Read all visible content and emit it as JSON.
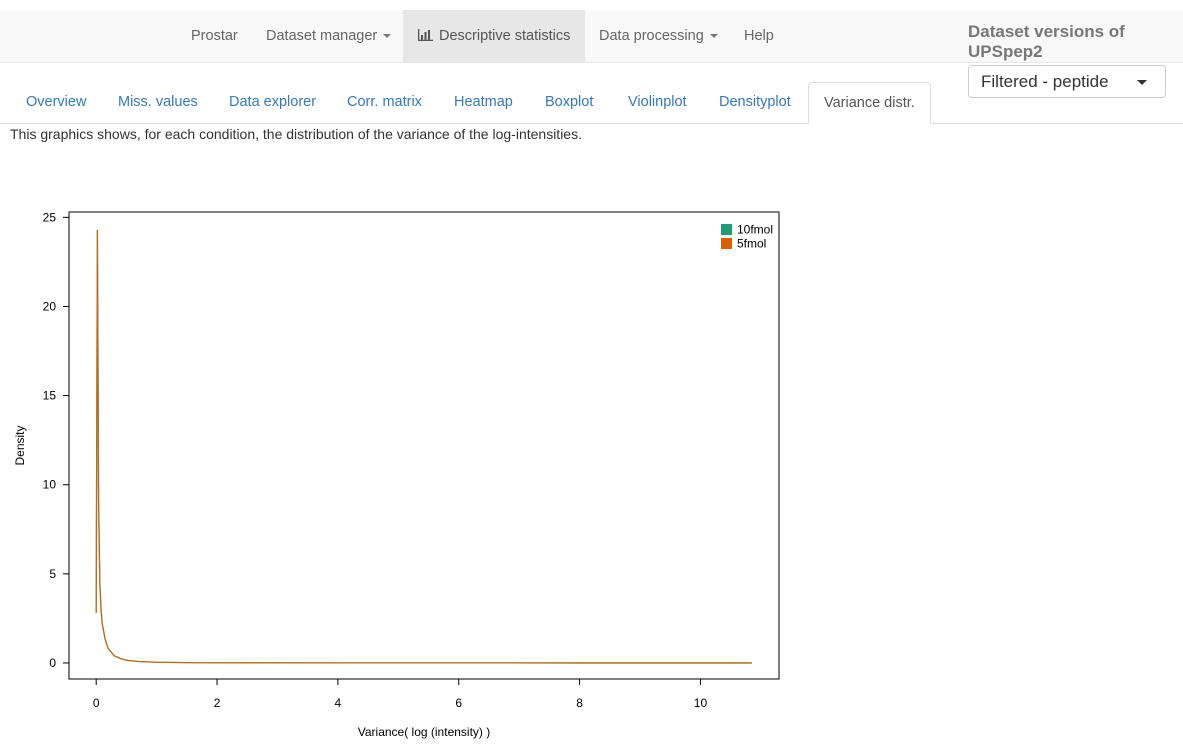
{
  "navbar": {
    "items": [
      {
        "label": "Prostar",
        "dropdown": false
      },
      {
        "label": "Dataset manager",
        "dropdown": true
      },
      {
        "label": "Descriptive statistics",
        "dropdown": false,
        "active": true,
        "icon": "bar-chart-icon"
      },
      {
        "label": "Data processing",
        "dropdown": true
      },
      {
        "label": "Help",
        "dropdown": false
      }
    ]
  },
  "dataset": {
    "title": "Dataset versions of UPSpep2",
    "selected_version": "Filtered - peptide"
  },
  "tabs": [
    {
      "label": "Overview"
    },
    {
      "label": "Miss. values"
    },
    {
      "label": "Data explorer"
    },
    {
      "label": "Corr. matrix"
    },
    {
      "label": "Heatmap"
    },
    {
      "label": "Boxplot"
    },
    {
      "label": "Violinplot"
    },
    {
      "label": "Densityplot"
    },
    {
      "label": "Variance distr.",
      "active": true
    }
  ],
  "description": "This graphics shows, for each condition, the distribution of the variance of the log-intensities.",
  "colors": {
    "series_10fmol": "#1b9e77",
    "series_5fmol": "#d95f02",
    "link": "#337ab7",
    "navbar_bg": "#f8f8f8"
  },
  "chart_data": {
    "type": "line",
    "title": "",
    "xlabel": "Variance( log (intensity) )",
    "ylabel": "Density",
    "xlim": [
      -0.45,
      11.3
    ],
    "ylim": [
      -0.9,
      25.3
    ],
    "xticks": [
      0,
      2,
      4,
      6,
      8,
      10
    ],
    "yticks": [
      0,
      5,
      10,
      15,
      20,
      25
    ],
    "legend_position": "top-right",
    "grid": false,
    "series": [
      {
        "name": "10fmol",
        "x": [
          0,
          0.02,
          0.04,
          0.06,
          0.08,
          0.1,
          0.15,
          0.2,
          0.3,
          0.4,
          0.5,
          0.7,
          1.0,
          1.5,
          2,
          4,
          6,
          8,
          10,
          10.85
        ],
        "y": [
          2.8,
          24.3,
          9.0,
          4.5,
          3.0,
          2.2,
          1.3,
          0.8,
          0.4,
          0.25,
          0.15,
          0.08,
          0.04,
          0.02,
          0.01,
          0.005,
          0.003,
          0.002,
          0.001,
          0.0
        ]
      },
      {
        "name": "5fmol",
        "x": [
          0,
          0.02,
          0.04,
          0.06,
          0.08,
          0.1,
          0.15,
          0.2,
          0.3,
          0.4,
          0.5,
          0.7,
          1.0,
          1.5,
          2,
          4,
          6,
          8,
          10,
          10.85
        ],
        "y": [
          2.8,
          24.3,
          9.0,
          4.5,
          3.0,
          2.2,
          1.3,
          0.8,
          0.4,
          0.25,
          0.15,
          0.08,
          0.04,
          0.02,
          0.01,
          0.005,
          0.003,
          0.002,
          0.001,
          0.0
        ]
      }
    ]
  }
}
